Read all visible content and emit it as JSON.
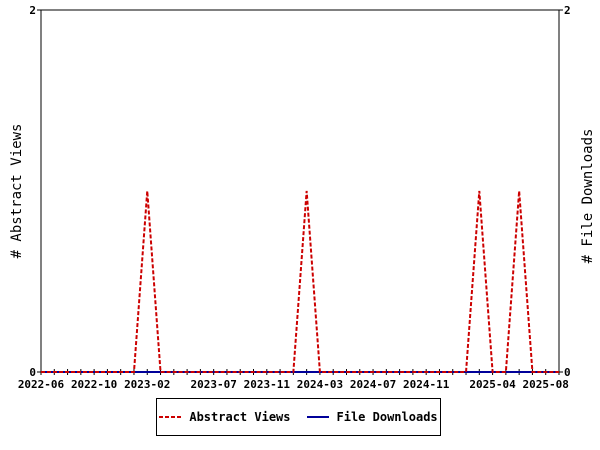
{
  "chart_data": {
    "type": "line",
    "categories": [
      "2022-06",
      "2022-07",
      "2022-08",
      "2022-09",
      "2022-10",
      "2022-11",
      "2022-12",
      "2023-01",
      "2023-02",
      "2023-03",
      "2023-04",
      "2023-05",
      "2023-06",
      "2023-07",
      "2023-08",
      "2023-09",
      "2023-10",
      "2023-11",
      "2023-12",
      "2024-01",
      "2024-02",
      "2024-03",
      "2024-04",
      "2024-05",
      "2024-06",
      "2024-07",
      "2024-08",
      "2024-09",
      "2024-10",
      "2024-11",
      "2024-12",
      "2025-01",
      "2025-02",
      "2025-03",
      "2025-04",
      "2025-05",
      "2025-06",
      "2025-07",
      "2025-08",
      "2025-09"
    ],
    "x_tick_labels": [
      "2022-06",
      "2022-10",
      "2023-02",
      "2023-07",
      "2023-11",
      "2024-03",
      "2024-07",
      "2024-11",
      "2025-04",
      "2025-08"
    ],
    "series": [
      {
        "name": "Abstract Views",
        "axis": "left",
        "color": "#cc0000",
        "dash": "dashed",
        "values": [
          0,
          0,
          0,
          0,
          0,
          0,
          0,
          0,
          1,
          0,
          0,
          0,
          0,
          0,
          0,
          0,
          0,
          0,
          0,
          0,
          1,
          0,
          0,
          0,
          0,
          0,
          0,
          0,
          0,
          0,
          0,
          0,
          0,
          1,
          0,
          0,
          1,
          0,
          0,
          0
        ]
      },
      {
        "name": "File Downloads",
        "axis": "right",
        "color": "#000099",
        "dash": "solid",
        "values": [
          0,
          0,
          0,
          0,
          0,
          0,
          0,
          0,
          0,
          0,
          0,
          0,
          0,
          0,
          0,
          0,
          0,
          0,
          0,
          0,
          0,
          0,
          0,
          0,
          0,
          0,
          0,
          0,
          0,
          0,
          0,
          0,
          0,
          0,
          0,
          0,
          0,
          0,
          0,
          0
        ]
      }
    ],
    "ylabel_left": "# Abstract Views",
    "ylabel_right": "# File Downloads",
    "ylim": [
      0,
      2
    ],
    "y_ticks": [
      "0",
      "2"
    ],
    "grid": false,
    "legend_position": "bottom"
  }
}
